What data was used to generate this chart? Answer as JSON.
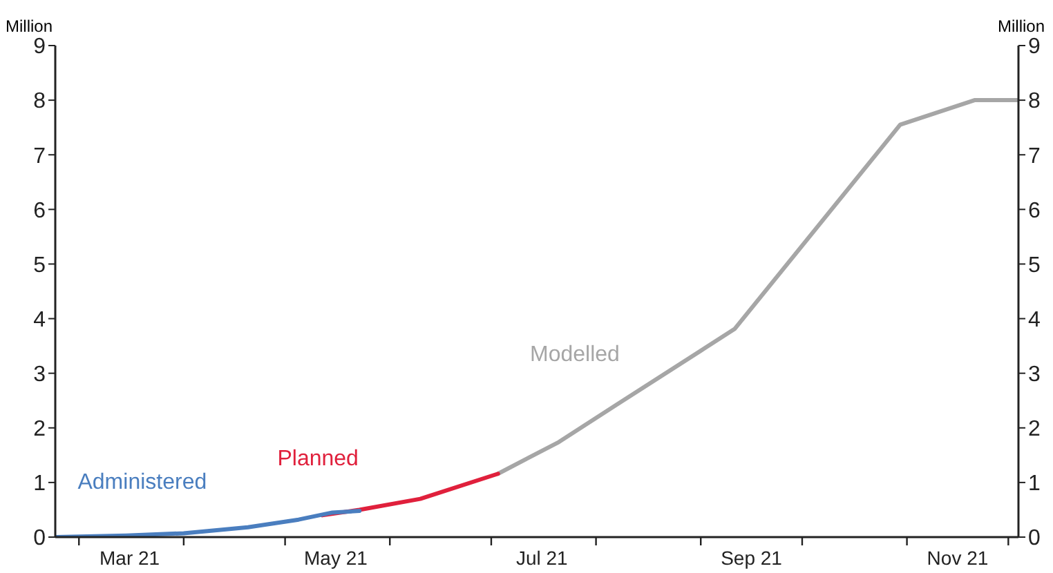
{
  "chart_data": {
    "type": "line",
    "ylabel": "Million",
    "y2label": "Million",
    "xlim": [
      "2021-02-22",
      "2021-12-04"
    ],
    "xticks": [
      {
        "value": "2021-03-01",
        "label": null
      },
      {
        "value": "2021-03-16",
        "label": "Mar 21"
      },
      {
        "value": "2021-04-01",
        "label": null
      },
      {
        "value": "2021-05-01",
        "label": null
      },
      {
        "value": "2021-05-16",
        "label": "May 21"
      },
      {
        "value": "2021-06-01",
        "label": null
      },
      {
        "value": "2021-07-01",
        "label": null
      },
      {
        "value": "2021-07-16",
        "label": "Jul 21"
      },
      {
        "value": "2021-08-01",
        "label": null
      },
      {
        "value": "2021-09-01",
        "label": null
      },
      {
        "value": "2021-09-16",
        "label": "Sep 21"
      },
      {
        "value": "2021-10-01",
        "label": null
      },
      {
        "value": "2021-11-01",
        "label": null
      },
      {
        "value": "2021-11-16",
        "label": "Nov 21"
      },
      {
        "value": "2021-12-01",
        "label": null
      }
    ],
    "ylim": [
      0,
      9
    ],
    "yticks": [
      0,
      1,
      2,
      3,
      4,
      5,
      6,
      7,
      8,
      9
    ],
    "y2lim": [
      0,
      9
    ],
    "y2ticks": [
      0,
      1,
      2,
      3,
      4,
      5,
      6,
      7,
      8,
      9
    ],
    "marker": "none",
    "line_style": "solid",
    "series": [
      {
        "name": "Modelled",
        "color": "#a6a6a6",
        "x": [
          "2021-07-03",
          "2021-07-21",
          "2021-08-07",
          "2021-09-11",
          "2021-10-30",
          "2021-11-21",
          "2021-12-04"
        ],
        "values": [
          1.16,
          1.74,
          2.42,
          3.81,
          7.55,
          8.0,
          8.0
        ]
      },
      {
        "name": "Planned",
        "color": "#e0203c",
        "x": [
          "2021-05-12",
          "2021-05-23",
          "2021-06-10",
          "2021-07-03"
        ],
        "values": [
          0.4,
          0.5,
          0.7,
          1.16
        ]
      },
      {
        "name": "Administered",
        "color": "#4a7ebf",
        "x": [
          "2021-02-22",
          "2021-03-15",
          "2021-04-01",
          "2021-04-20",
          "2021-05-05",
          "2021-05-15",
          "2021-05-23"
        ],
        "values": [
          0.0,
          0.03,
          0.07,
          0.18,
          0.32,
          0.45,
          0.48
        ]
      }
    ]
  }
}
